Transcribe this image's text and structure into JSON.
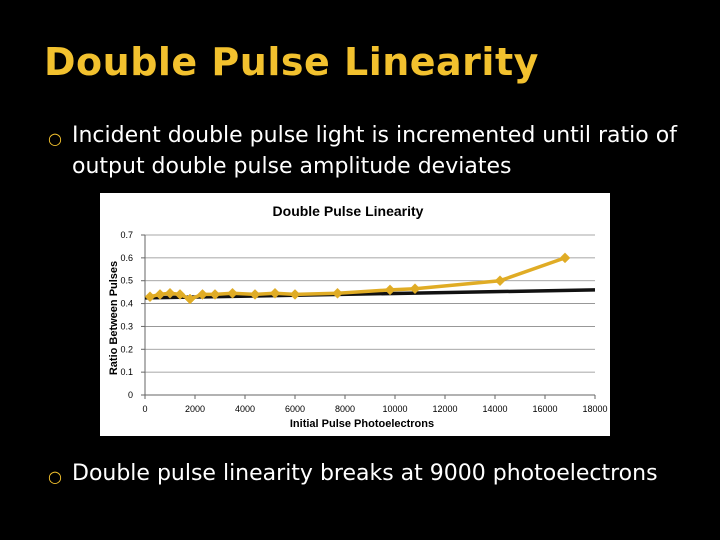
{
  "slide": {
    "title": "Double Pulse Linearity",
    "bullets": [
      "Incident double pulse light is incremented until ratio of  output double pulse amplitude deviates",
      "Double pulse linearity breaks at 9000 photoelectrons"
    ],
    "bullet_glyph": "○"
  },
  "colors": {
    "title": "#f2c12e",
    "series_data": "#e0ac25",
    "series_fit": "#111111",
    "background": "#000000",
    "plot_background": "#ffffff"
  },
  "chart_data": {
    "type": "line",
    "title": "Double Pulse Linearity",
    "xlabel": "Initial Pulse Photoelectrons",
    "ylabel": "Ratio Between Pulses",
    "xlim": [
      0,
      18000
    ],
    "ylim": [
      0,
      0.7
    ],
    "xticks": [
      "0",
      "2000",
      "4000",
      "6000",
      "8000",
      "10000",
      "12000",
      "14000",
      "16000",
      "18000"
    ],
    "yticks": [
      "0",
      "0.1",
      "0.2",
      "0.3",
      "0.4",
      "0.5",
      "0.6",
      "0.7"
    ],
    "grid": true,
    "legend": "none",
    "series": [
      {
        "marker": "diamond",
        "x": [
          200,
          600,
          1000,
          1400,
          1800,
          2300,
          2800,
          3500,
          4400,
          5200,
          6000,
          7700,
          9800,
          10800,
          14200,
          16800
        ],
        "y": [
          0.43,
          0.44,
          0.445,
          0.44,
          0.42,
          0.44,
          0.44,
          0.445,
          0.44,
          0.445,
          0.44,
          0.445,
          0.46,
          0.465,
          0.5,
          0.6
        ]
      },
      {
        "x": [
          0,
          18000
        ],
        "y": [
          0.425,
          0.46
        ]
      }
    ]
  }
}
